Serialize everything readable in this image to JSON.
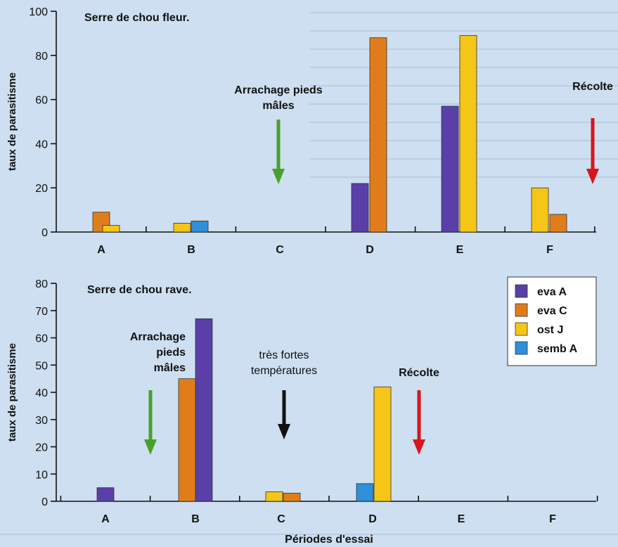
{
  "xlabel": "Périodes d'essai",
  "colors": {
    "eva A": "#5a3fa8",
    "eva C": "#e07d1a",
    "ost J": "#f5c518",
    "semb A": "#2f8fd8"
  },
  "legend": [
    "eva A",
    "eva C",
    "ost J",
    "semb A"
  ],
  "chart_data": [
    {
      "type": "bar",
      "title": "Serre de chou fleur.",
      "ylabel": "taux de parasitisme",
      "ylim": [
        0,
        100
      ],
      "yticks": [
        0,
        20,
        40,
        60,
        80,
        100
      ],
      "categories": [
        "A",
        "B",
        "C",
        "D",
        "E",
        "F"
      ],
      "series": [
        {
          "name": "eva A",
          "values": [
            null,
            null,
            null,
            22,
            57,
            null
          ]
        },
        {
          "name": "eva C",
          "values": [
            9,
            null,
            null,
            88,
            null,
            8
          ]
        },
        {
          "name": "ost J",
          "values": [
            3,
            4,
            null,
            null,
            89,
            20
          ]
        },
        {
          "name": "semb A",
          "values": [
            null,
            5,
            null,
            null,
            null,
            null
          ]
        }
      ],
      "annotations": [
        {
          "text": [
            "Arrachage pieds",
            "mâles"
          ],
          "category": "C",
          "color": "#4aa02c",
          "style": "bold"
        },
        {
          "text": [
            "Récolte"
          ],
          "category": "F",
          "color": "#d8161c",
          "style": "bold"
        }
      ]
    },
    {
      "type": "bar",
      "title": "Serre de chou rave.",
      "ylabel": "taux de parasitisme",
      "ylim": [
        0,
        80
      ],
      "yticks": [
        0,
        10,
        20,
        30,
        40,
        50,
        60,
        70,
        80
      ],
      "categories": [
        "A",
        "B",
        "C",
        "D",
        "E",
        "F"
      ],
      "series": [
        {
          "name": "eva A",
          "values": [
            5,
            67,
            null,
            null,
            null,
            null
          ]
        },
        {
          "name": "eva C",
          "values": [
            null,
            45,
            3,
            null,
            null,
            null
          ]
        },
        {
          "name": "ost J",
          "values": [
            null,
            null,
            3.5,
            42,
            null,
            null
          ]
        },
        {
          "name": "semb A",
          "values": [
            null,
            null,
            null,
            6.5,
            null,
            null
          ]
        }
      ],
      "annotations": [
        {
          "text": [
            "Arrachage",
            "pieds",
            "mâles"
          ],
          "category": "A-B",
          "color": "#4aa02c",
          "style": "bold"
        },
        {
          "text": [
            "très fortes",
            "températures"
          ],
          "category": "C",
          "color": "#111111",
          "style": "normal"
        },
        {
          "text": [
            "Récolte"
          ],
          "category": "D-E",
          "color": "#d8161c",
          "style": "bold"
        }
      ]
    }
  ]
}
